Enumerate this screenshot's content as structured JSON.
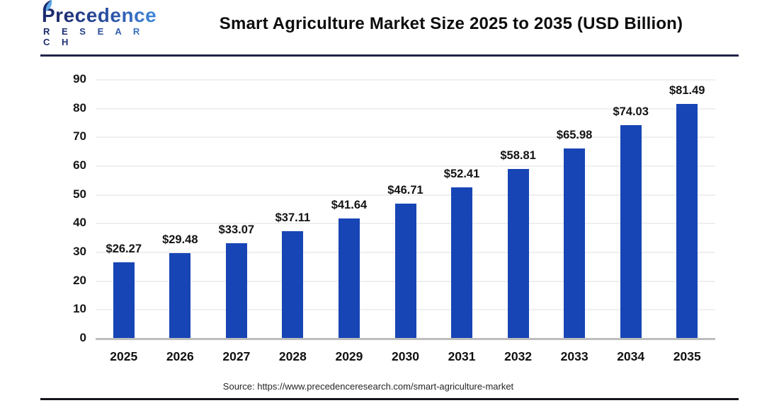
{
  "header": {
    "logo": {
      "name": "Precedence",
      "tagline": "R E S E A R C H"
    },
    "title": "Smart Agriculture Market Size 2025 to 2035 (USD Billion)"
  },
  "chart_data": {
    "type": "bar",
    "categories": [
      "2025",
      "2026",
      "2027",
      "2028",
      "2029",
      "2030",
      "2031",
      "2032",
      "2033",
      "2034",
      "2035"
    ],
    "values": [
      26.27,
      29.48,
      33.07,
      37.11,
      41.64,
      46.71,
      52.41,
      58.81,
      65.98,
      74.03,
      81.49
    ],
    "data_labels": [
      "$26.27",
      "$29.48",
      "$33.07",
      "$37.11",
      "$41.64",
      "$46.71",
      "$52.41",
      "$58.81",
      "$65.98",
      "$74.03",
      "$81.49"
    ],
    "title": "Smart Agriculture Market Size 2025 to 2035 (USD Billion)",
    "xlabel": "",
    "ylabel": "",
    "ylim": [
      0,
      90
    ],
    "yticks": [
      0,
      10,
      20,
      30,
      40,
      50,
      60,
      70,
      80,
      90
    ],
    "grid": true,
    "legend": false,
    "bar_color": "#1745b5"
  },
  "footer": {
    "source": "Source: https://www.precedenceresearch.com/smart-agriculture-market"
  },
  "colors": {
    "bar": "#1745b5",
    "header_rule": "#20244a",
    "bottom_rule": "#15161c",
    "logo_gradient_start": "#1c2b6e",
    "logo_gradient_end": "#3f8fdf"
  }
}
